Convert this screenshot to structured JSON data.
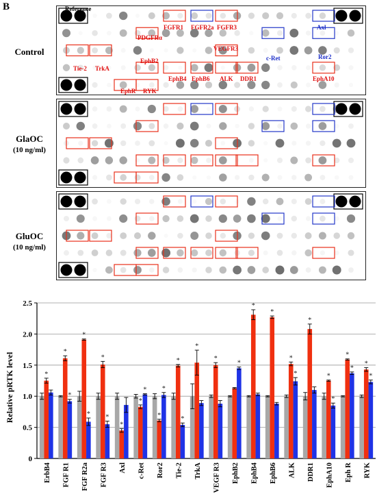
{
  "panel_letter": "B",
  "blots": [
    {
      "condition": "Control",
      "dose": "",
      "labels": [
        {
          "text": "Reference",
          "color": "black"
        },
        {
          "text": "PDGFRα",
          "color": "red"
        },
        {
          "text": "FGFR1",
          "color": "red"
        },
        {
          "text": "FGFR2a",
          "color": "red"
        },
        {
          "text": "FGFR3",
          "color": "red"
        },
        {
          "text": "VEGFR3",
          "color": "red"
        },
        {
          "text": "Axl",
          "color": "blue"
        },
        {
          "text": "Tie-2",
          "color": "red"
        },
        {
          "text": "TrkA",
          "color": "red"
        },
        {
          "text": "EphB2",
          "color": "red"
        },
        {
          "text": "c-Ret",
          "color": "blue"
        },
        {
          "text": "Ror2",
          "color": "blue"
        },
        {
          "text": "EphB4",
          "color": "red"
        },
        {
          "text": "EphB6",
          "color": "red"
        },
        {
          "text": "ALK",
          "color": "red"
        },
        {
          "text": "DDR1",
          "color": "red"
        },
        {
          "text": "EphA10",
          "color": "red"
        },
        {
          "text": "EphR",
          "color": "red"
        },
        {
          "text": "RYK",
          "color": "red"
        }
      ]
    },
    {
      "condition": "GlaOC",
      "dose": "(10 ng/ml)",
      "labels": []
    },
    {
      "condition": "GluOC",
      "dose": "(10 ng/ml)",
      "labels": []
    }
  ],
  "colors": {
    "control": "#a8a8a8",
    "glaoc": "#f03010",
    "gluoc": "#1f33e6",
    "red_box": "#e8301a",
    "blue_box": "#2236c8"
  },
  "chart_data": {
    "type": "bar",
    "ylabel": "Relative pRTK level",
    "ylim": [
      0,
      2.5
    ],
    "yticks": [
      "0",
      "0.5",
      "1.0",
      "1.5",
      "2.0",
      "2.5"
    ],
    "grid": true,
    "categories": [
      "ErbB4",
      "FGF R1",
      "FGF R2a",
      "FGF R3",
      "Axl",
      "c-Ret",
      "Ror2",
      "Tie-2",
      "TrkA",
      "VEGF R3",
      "EphB2",
      "EphB4",
      "EphB6",
      "ALK",
      "DDR1",
      "EphA10",
      "Eph R",
      "RYK"
    ],
    "series": [
      {
        "key": "control",
        "values": [
          1.0,
          1.0,
          1.0,
          1.0,
          1.0,
          1.0,
          1.0,
          1.0,
          1.0,
          1.0,
          1.0,
          1.0,
          1.0,
          1.0,
          1.0,
          1.0,
          1.0,
          1.0
        ],
        "errors": [
          0.05,
          0.01,
          0.08,
          0.05,
          0.05,
          0.03,
          0.04,
          0.05,
          0.2,
          0.02,
          0.01,
          0.01,
          0.01,
          0.02,
          0.06,
          0.05,
          0.01,
          0.02
        ]
      },
      {
        "key": "glaoc",
        "values": [
          1.25,
          1.61,
          1.91,
          1.51,
          0.45,
          0.83,
          0.61,
          1.49,
          1.54,
          1.5,
          1.13,
          2.31,
          2.27,
          1.52,
          2.08,
          1.25,
          1.59,
          1.43
        ],
        "errors": [
          0.04,
          0.04,
          0.01,
          0.05,
          0.03,
          0.03,
          0.02,
          0.02,
          0.2,
          0.04,
          0.01,
          0.08,
          0.02,
          0.03,
          0.08,
          0.01,
          0.01,
          0.03
        ]
      },
      {
        "key": "gluoc",
        "values": [
          1.06,
          0.92,
          0.59,
          0.55,
          0.86,
          1.03,
          1.02,
          0.54,
          0.89,
          0.88,
          1.45,
          1.03,
          0.88,
          1.24,
          1.1,
          0.85,
          1.37,
          1.23
        ],
        "errors": [
          0.04,
          0.03,
          0.06,
          0.05,
          0.12,
          0.01,
          0.04,
          0.03,
          0.04,
          0.05,
          0.02,
          0.02,
          0.02,
          0.06,
          0.05,
          0.04,
          0.02,
          0.03
        ]
      }
    ],
    "significance": {
      "glaoc": [
        true,
        true,
        true,
        true,
        true,
        true,
        true,
        true,
        true,
        true,
        false,
        true,
        true,
        true,
        true,
        true,
        true,
        true
      ],
      "gluoc": [
        false,
        true,
        true,
        true,
        false,
        true,
        true,
        true,
        false,
        false,
        true,
        false,
        false,
        true,
        false,
        true,
        true,
        true
      ]
    },
    "marker": "*"
  }
}
